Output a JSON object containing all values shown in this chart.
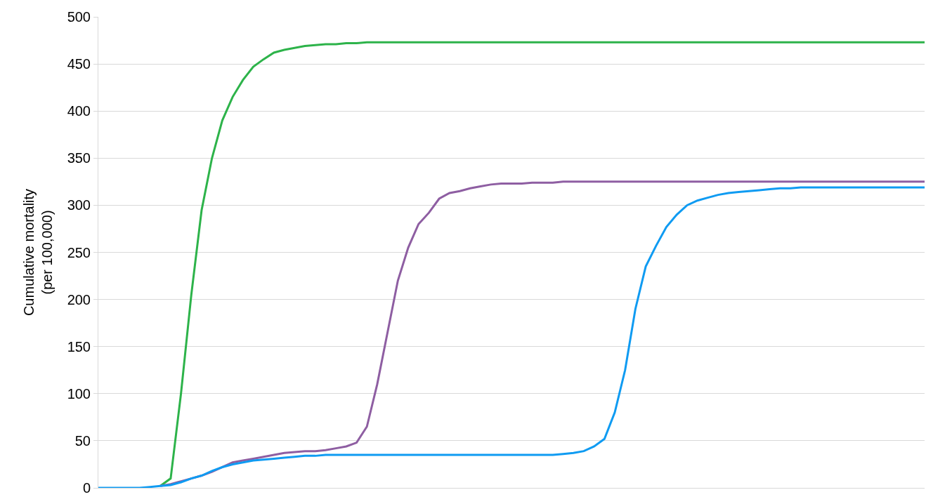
{
  "chart_data": {
    "type": "line",
    "ylabel": "Cumulative mortality\n(per 100,000)",
    "categories": [
      null,
      null,
      null,
      null,
      null,
      null,
      null,
      null,
      null,
      null,
      null,
      null,
      null,
      null,
      null,
      null,
      null,
      null,
      null,
      null,
      null,
      null,
      null,
      null,
      null,
      null,
      null,
      null,
      null,
      null,
      null,
      null,
      null,
      null,
      null,
      null,
      null,
      null,
      null,
      null,
      null,
      null,
      null,
      null,
      null,
      null,
      null,
      null,
      null,
      null,
      null,
      null,
      null,
      null,
      null,
      null,
      null,
      null,
      null,
      null,
      null,
      null,
      null,
      null,
      null,
      null,
      null,
      null,
      null,
      null,
      null,
      null,
      null,
      null,
      null,
      null,
      null,
      null,
      null,
      null,
      null
    ],
    "series": [
      {
        "color": "#2db34a",
        "values": [
          null,
          null,
          null,
          null,
          null,
          null,
          2,
          10,
          100,
          205,
          295,
          350,
          390,
          415,
          433,
          447,
          455,
          462,
          465,
          467,
          469,
          470,
          471,
          471,
          472,
          472,
          473,
          473,
          473,
          473,
          473,
          473,
          473,
          473,
          473,
          473,
          473,
          473,
          473,
          473,
          473,
          473,
          473,
          473,
          473,
          473,
          473,
          473,
          473,
          473,
          473,
          473,
          473,
          473,
          473,
          473,
          473,
          473,
          473,
          473,
          473,
          473,
          473,
          473,
          473,
          473,
          473,
          473,
          473,
          473,
          473,
          473,
          473,
          473,
          473,
          473,
          473,
          473,
          473,
          473,
          473
        ]
      },
      {
        "color": "#8e5ea2",
        "values": [
          null,
          null,
          null,
          null,
          null,
          null,
          2,
          4,
          7,
          10,
          13,
          17,
          22,
          27,
          29,
          31,
          33,
          35,
          37,
          38,
          39,
          39,
          40,
          42,
          44,
          48,
          65,
          110,
          165,
          220,
          255,
          280,
          292,
          307,
          313,
          315,
          318,
          320,
          322,
          323,
          323,
          323,
          324,
          324,
          324,
          325,
          325,
          325,
          325,
          325,
          325,
          325,
          325,
          325,
          325,
          325,
          325,
          325,
          325,
          325,
          325,
          325,
          325,
          325,
          325,
          325,
          325,
          325,
          325,
          325,
          325,
          325,
          325,
          325,
          325,
          325,
          325,
          325,
          325,
          325,
          325
        ]
      },
      {
        "color": "#0f9bf2",
        "values": [
          0,
          0,
          0,
          0,
          0,
          1,
          2,
          3,
          6,
          10,
          13,
          18,
          22,
          25,
          27,
          29,
          30,
          31,
          32,
          33,
          34,
          34,
          35,
          35,
          35,
          35,
          35,
          35,
          35,
          35,
          35,
          35,
          35,
          35,
          35,
          35,
          35,
          35,
          35,
          35,
          35,
          35,
          35,
          35,
          35,
          36,
          37,
          39,
          44,
          52,
          80,
          125,
          190,
          235,
          257,
          277,
          290,
          300,
          305,
          308,
          311,
          313,
          314,
          315,
          316,
          317,
          318,
          318,
          319,
          319,
          319,
          319,
          319,
          319,
          319,
          319,
          319,
          319,
          319,
          319,
          319
        ]
      }
    ],
    "ylim": [
      0,
      500
    ],
    "yticks": [
      0,
      50,
      100,
      150,
      200,
      250,
      300,
      350,
      400,
      450,
      500
    ],
    "grid": "y",
    "tick_labels": "y",
    "marker": "none",
    "line_style": "solid"
  }
}
